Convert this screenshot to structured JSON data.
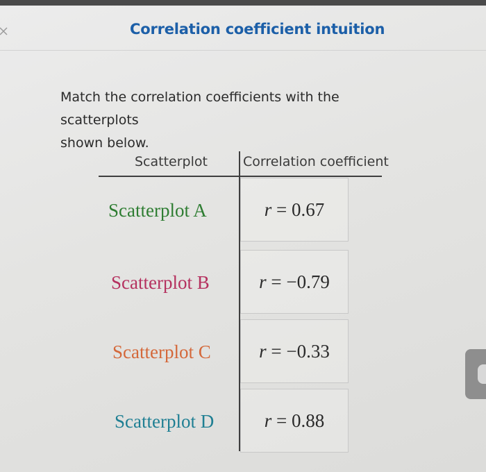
{
  "header": {
    "title": "Correlation coefficient intuition"
  },
  "instructions": {
    "line1": "Match the correlation coefficients with the scatterplots",
    "line2": "shown below."
  },
  "table": {
    "col1_header": "Scatterplot",
    "col2_header": "Correlation coefficient",
    "rows": [
      {
        "label": "Scatterplot A",
        "color": "#2e7d32",
        "variable": "r",
        "equals": "=",
        "value": "0.67"
      },
      {
        "label": "Scatterplot B",
        "color": "#b5315f",
        "variable": "r",
        "equals": "=",
        "value": "−0.79"
      },
      {
        "label": "Scatterplot C",
        "color": "#d4683a",
        "variable": "r",
        "equals": "=",
        "value": "−0.33"
      },
      {
        "label": "Scatterplot D",
        "color": "#1f7f93",
        "variable": "r",
        "equals": "=",
        "value": "0.88"
      }
    ]
  },
  "colors": {
    "title": "#1c5fa8",
    "text": "#2a2a2a"
  }
}
